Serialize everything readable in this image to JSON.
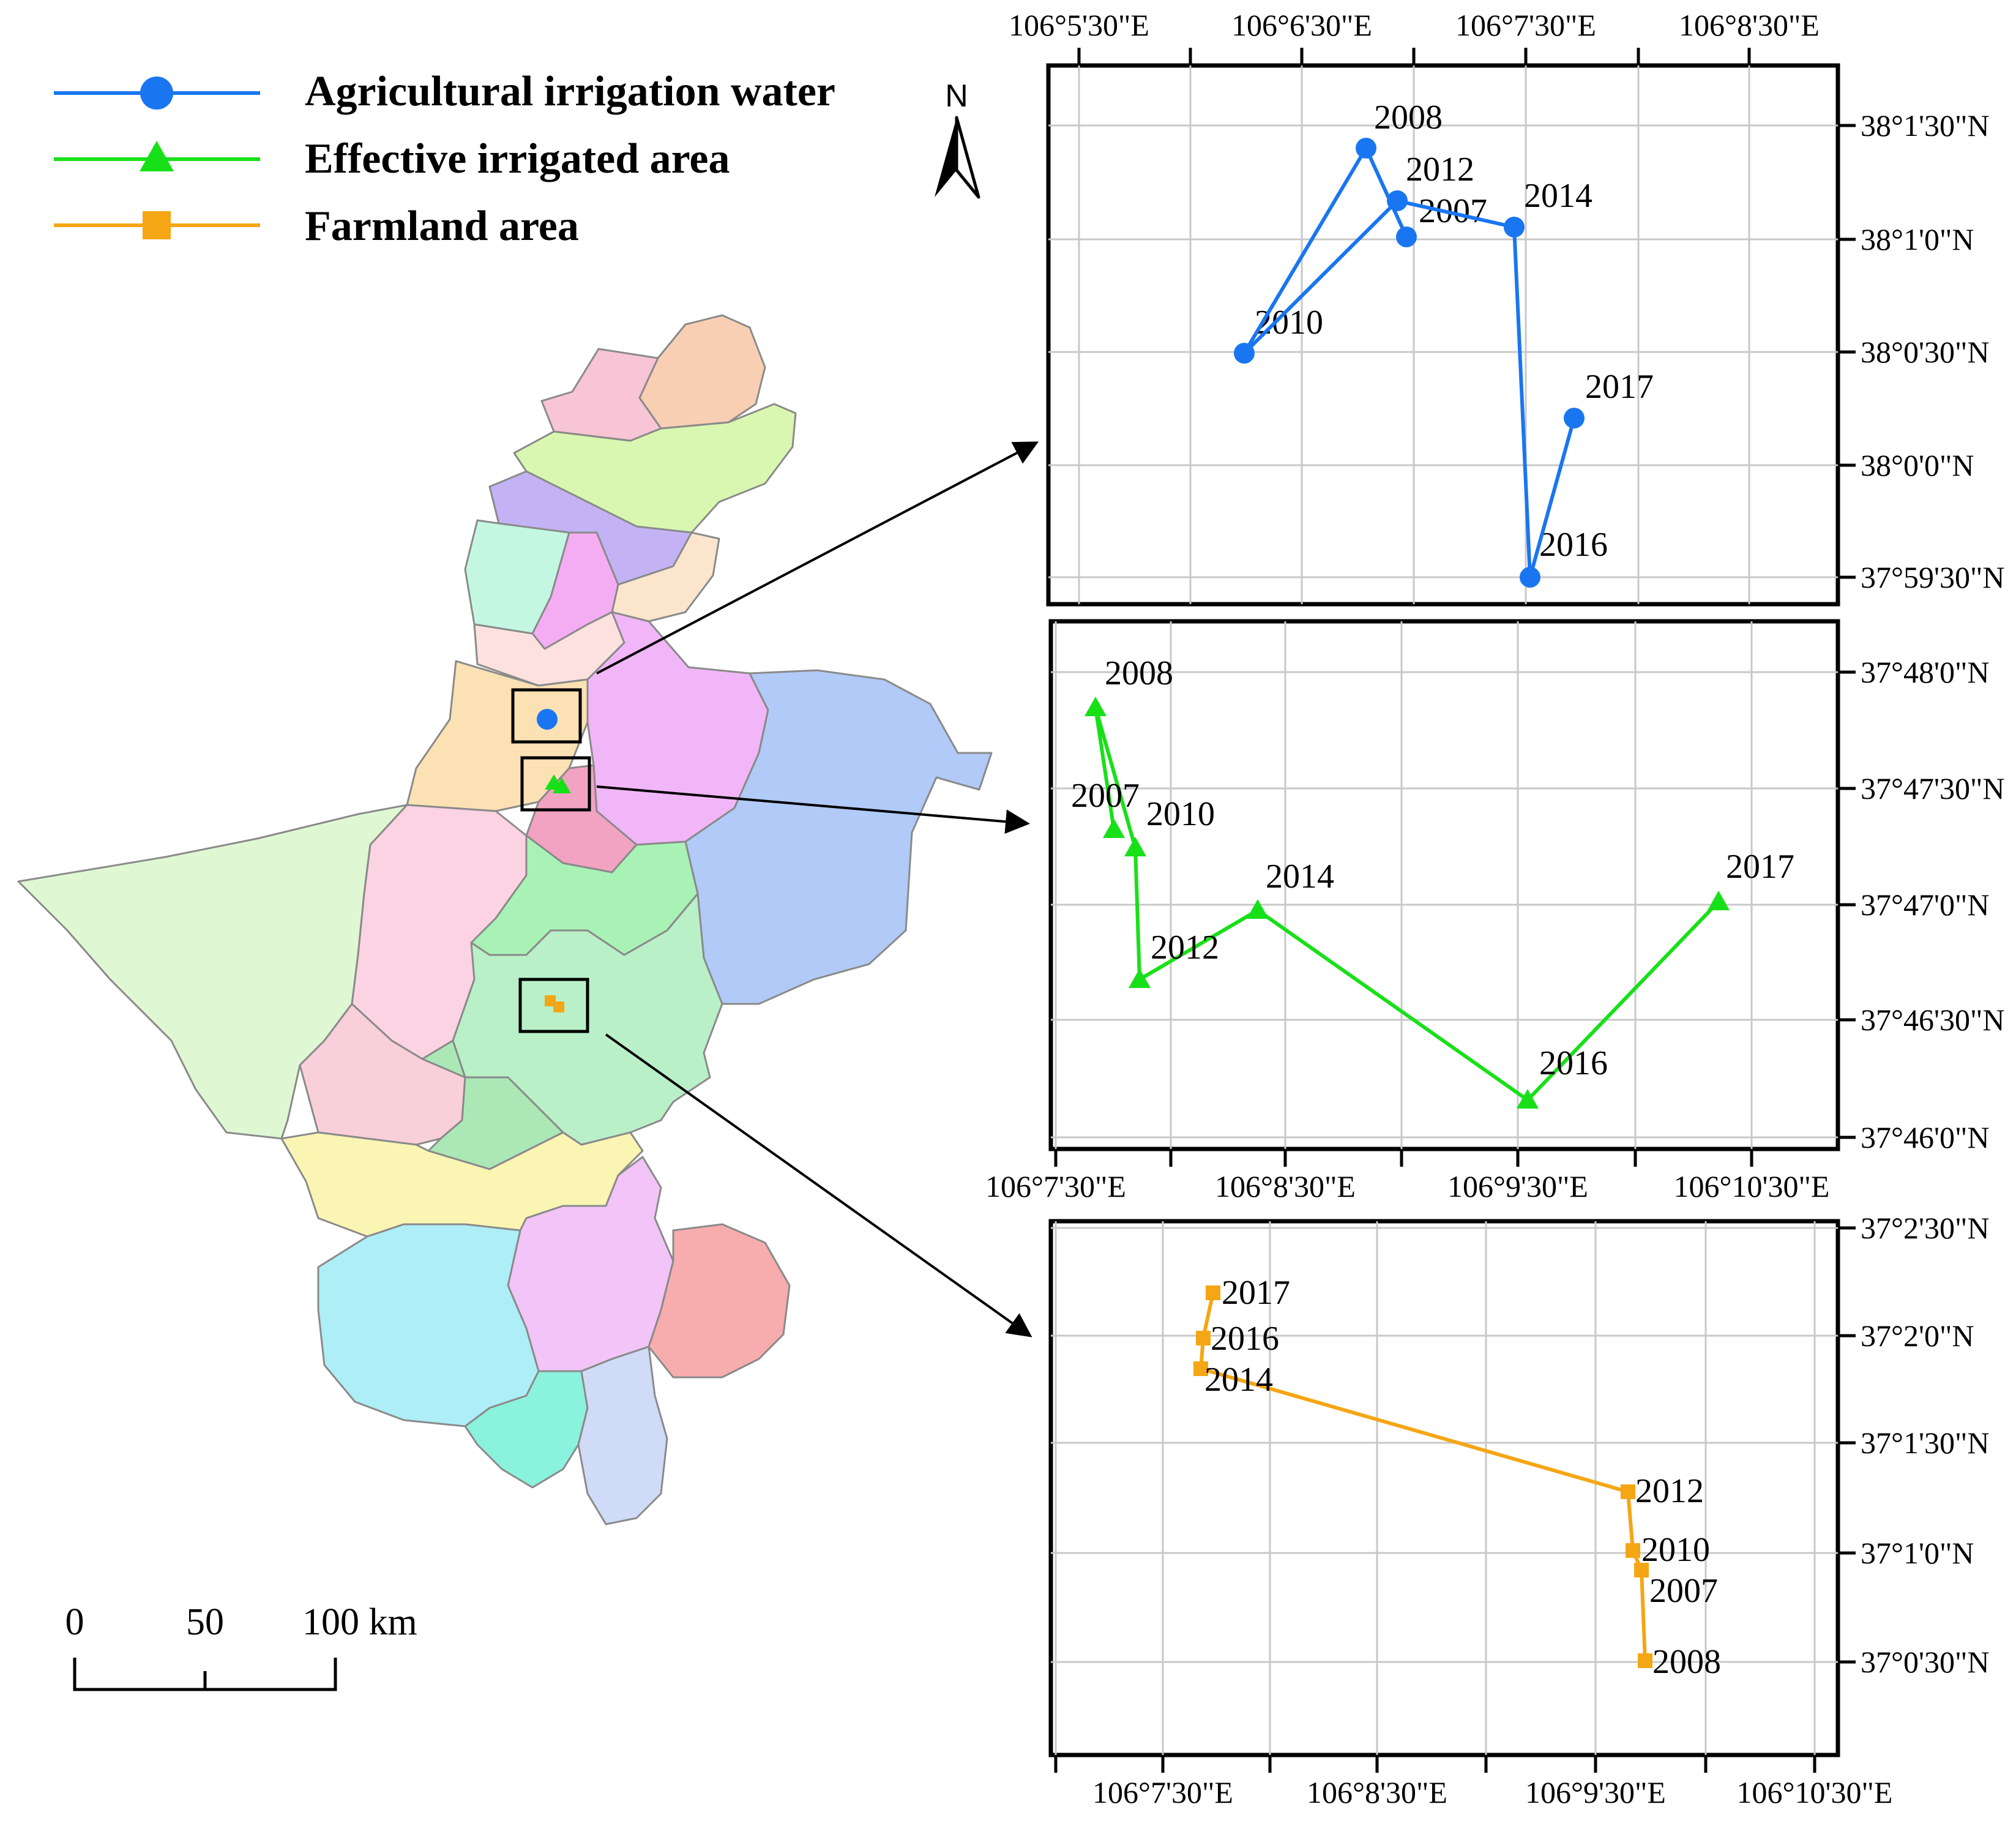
{
  "legend": {
    "items": [
      {
        "label": "Agricultural irrigation water",
        "color": "#1976f0",
        "marker": "circle"
      },
      {
        "label": "Effective irrigated area",
        "color": "#18e018",
        "marker": "triangle"
      },
      {
        "label": "Farmland area",
        "color": "#f5a614",
        "marker": "square"
      }
    ]
  },
  "north_arrow": {
    "label": "N",
    "icon": "north-arrow-icon"
  },
  "scale_bar": {
    "ticks": [
      "0",
      "50",
      "100 km"
    ]
  },
  "panels": {
    "water": {
      "color": "#1976f0",
      "marker": "circle",
      "x_labels": [
        "106°5'30\"E",
        "106°6'30\"E",
        "106°7'30\"E",
        "106°8'30\"E"
      ],
      "y_labels": [
        "38°1'30\"N",
        "38°1'0\"N",
        "38°0'30\"N",
        "38°0'0\"N",
        "37°59'30\"N"
      ],
      "points": [
        {
          "year": "2010"
        },
        {
          "year": "2008"
        },
        {
          "year": "2012"
        },
        {
          "year": "2007"
        },
        {
          "year": "2014"
        },
        {
          "year": "2016"
        },
        {
          "year": "2017"
        }
      ]
    },
    "irrigated": {
      "color": "#18e018",
      "marker": "triangle",
      "x_labels": [
        "106°7'30\"E",
        "106°8'30\"E",
        "106°9'30\"E",
        "106°10'30\"E"
      ],
      "y_labels": [
        "37°48'0\"N",
        "37°47'30\"N",
        "37°47'0\"N",
        "37°46'30\"N",
        "37°46'0\"N"
      ],
      "points": [
        {
          "year": "2008"
        },
        {
          "year": "2007"
        },
        {
          "year": "2010"
        },
        {
          "year": "2012"
        },
        {
          "year": "2014"
        },
        {
          "year": "2016"
        },
        {
          "year": "2017"
        }
      ]
    },
    "farmland": {
      "color": "#f5a614",
      "marker": "square",
      "x_labels": [
        "106°7'30\"E",
        "106°8'30\"E",
        "106°9'30\"E",
        "106°10'30\"E"
      ],
      "y_labels": [
        "37°2'30\"N",
        "37°2'0\"N",
        "37°1'30\"N",
        "37°1'0\"N",
        "37°0'30\"N"
      ],
      "points": [
        {
          "year": "2008"
        },
        {
          "year": "2007"
        },
        {
          "year": "2010"
        },
        {
          "year": "2012"
        },
        {
          "year": "2014"
        },
        {
          "year": "2016"
        },
        {
          "year": "2017"
        }
      ]
    }
  }
}
